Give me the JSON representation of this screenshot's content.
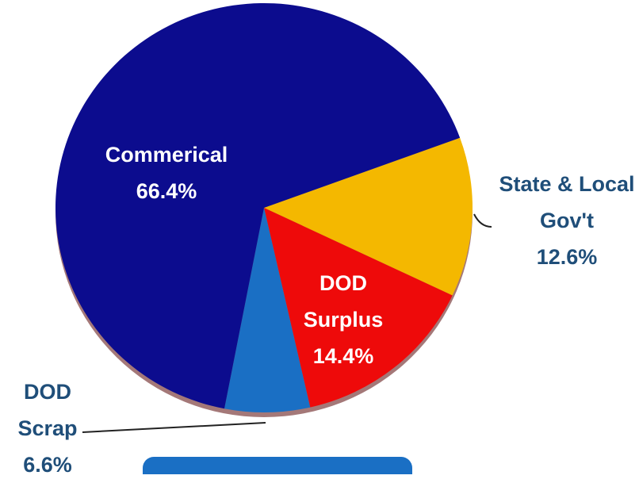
{
  "chart_data": {
    "type": "pie",
    "categories": [
      "State & Local Gov't",
      "DOD Surplus",
      "DOD Scrap",
      "Commerical"
    ],
    "values": [
      12.6,
      14.4,
      6.6,
      66.4
    ],
    "value_labels": [
      "12.6%",
      "14.4%",
      "6.6%",
      "66.4%"
    ],
    "colors": [
      "#f4b800",
      "#ee0a0a",
      "#1a6fc4",
      "#0c0c8e"
    ]
  }
}
